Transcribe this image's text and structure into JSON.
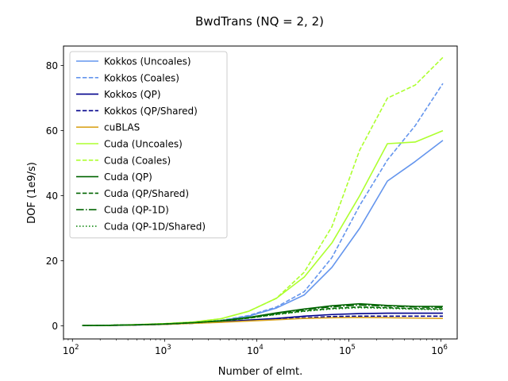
{
  "chart_data": {
    "type": "line",
    "title": "BwdTrans (NQ = 2, 2)",
    "xlabel": "Number of elmt.",
    "ylabel": "DOF (1e9/s)",
    "xscale": "log",
    "xlim": [
      80,
      1500000
    ],
    "ylim": [
      -4,
      86
    ],
    "grid": false,
    "legend_position": "top-left",
    "x_ticks": [
      {
        "value": 100,
        "base": "10",
        "exp": "2"
      },
      {
        "value": 1000,
        "base": "10",
        "exp": "3"
      },
      {
        "value": 10000,
        "base": "10",
        "exp": "4"
      },
      {
        "value": 100000,
        "base": "10",
        "exp": "5"
      },
      {
        "value": 1000000,
        "base": "10",
        "exp": "6"
      }
    ],
    "y_ticks": [
      {
        "value": 0,
        "label": "0"
      },
      {
        "value": 20,
        "label": "20"
      },
      {
        "value": 40,
        "label": "40"
      },
      {
        "value": 60,
        "label": "60"
      },
      {
        "value": 80,
        "label": "80"
      }
    ],
    "x": [
      128,
      256,
      512,
      1024,
      2048,
      4096,
      8192,
      16384,
      32768,
      65536,
      131072,
      262144,
      524288,
      1048576
    ],
    "series": [
      {
        "name": "Kokkos (Uncoales)",
        "color": "#6495ED",
        "dash": "solid",
        "values": [
          0.1,
          0.2,
          0.3,
          0.6,
          1.0,
          1.6,
          3.0,
          5.5,
          9.5,
          18.0,
          30.0,
          44.5,
          50.5,
          57.0
        ]
      },
      {
        "name": "Kokkos (Coales)",
        "color": "#6495ED",
        "dash": "dashed",
        "values": [
          0.1,
          0.2,
          0.3,
          0.6,
          1.0,
          1.7,
          3.2,
          5.8,
          10.5,
          21.0,
          37.0,
          51.0,
          61.5,
          74.5
        ]
      },
      {
        "name": "Kokkos (QP)",
        "color": "#00008B",
        "dash": "solid",
        "values": [
          0.1,
          0.15,
          0.3,
          0.5,
          0.9,
          1.3,
          1.8,
          2.3,
          3.0,
          3.5,
          3.8,
          3.9,
          3.9,
          3.9
        ]
      },
      {
        "name": "Kokkos (QP/Shared)",
        "color": "#00008B",
        "dash": "dashed",
        "values": [
          0.1,
          0.15,
          0.3,
          0.5,
          0.8,
          1.2,
          1.6,
          2.0,
          2.5,
          2.9,
          3.0,
          3.0,
          3.0,
          3.0
        ]
      },
      {
        "name": "cuBLAS",
        "color": "#DAA520",
        "dash": "solid",
        "values": [
          0.1,
          0.15,
          0.3,
          0.5,
          0.8,
          1.1,
          1.5,
          1.9,
          2.3,
          2.5,
          2.6,
          2.5,
          2.4,
          2.3
        ]
      },
      {
        "name": "Cuda (Uncoales)",
        "color": "#ADFF2F",
        "dash": "solid",
        "values": [
          0.1,
          0.2,
          0.4,
          0.7,
          1.2,
          2.2,
          4.5,
          8.5,
          15.0,
          25.5,
          40.0,
          56.0,
          56.5,
          60.0
        ]
      },
      {
        "name": "Cuda (Coales)",
        "color": "#ADFF2F",
        "dash": "dashed",
        "values": [
          0.1,
          0.2,
          0.4,
          0.7,
          1.2,
          2.2,
          4.5,
          8.5,
          16.5,
          30.5,
          54.0,
          70.0,
          74.0,
          82.5
        ]
      },
      {
        "name": "Cuda (QP)",
        "color": "#006400",
        "dash": "solid",
        "values": [
          0.1,
          0.2,
          0.35,
          0.6,
          1.0,
          1.6,
          2.6,
          4.0,
          5.2,
          6.2,
          6.8,
          6.3,
          6.0,
          6.0
        ]
      },
      {
        "name": "Cuda (QP/Shared)",
        "color": "#006400",
        "dash": "dashed",
        "values": [
          0.1,
          0.2,
          0.35,
          0.6,
          1.0,
          1.5,
          2.4,
          3.6,
          4.6,
          5.4,
          5.8,
          5.6,
          5.3,
          5.2
        ]
      },
      {
        "name": "Cuda (QP-1D)",
        "color": "#006400",
        "dash": "dashdot",
        "values": [
          0.1,
          0.2,
          0.35,
          0.6,
          1.0,
          1.6,
          2.6,
          3.9,
          5.0,
          5.9,
          6.4,
          6.1,
          5.8,
          5.7
        ]
      },
      {
        "name": "Cuda (QP-1D/Shared)",
        "color": "#008000",
        "dash": "dotted",
        "values": [
          0.1,
          0.2,
          0.35,
          0.6,
          1.0,
          1.5,
          2.4,
          3.5,
          4.5,
          5.2,
          5.6,
          5.4,
          5.1,
          5.0
        ]
      }
    ]
  }
}
